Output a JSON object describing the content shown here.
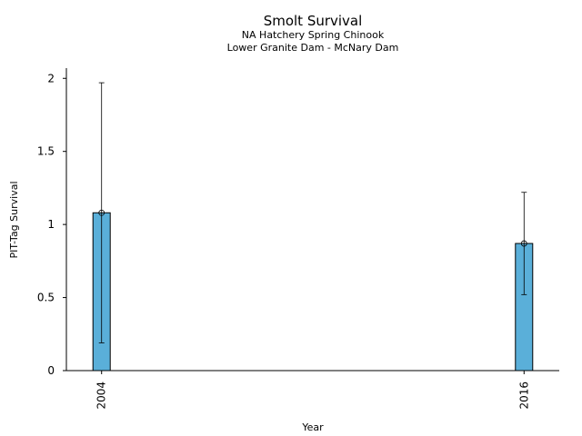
{
  "chart_data": {
    "type": "bar",
    "title": "Smolt Survival",
    "subtitle_lines": [
      "NA Hatchery Spring Chinook",
      "Lower Granite Dam - McNary Dam"
    ],
    "xlabel": "Year",
    "ylabel": "PIT-Tag Survival",
    "categories": [
      "2004",
      "2016"
    ],
    "x": [
      2004,
      2016
    ],
    "values": [
      1.08,
      0.87
    ],
    "error_lower": [
      0.19,
      0.52
    ],
    "error_upper": [
      1.97,
      1.22
    ],
    "ylim": [
      0,
      2.07
    ],
    "xlim": [
      2003.0,
      2017.0
    ],
    "yticks": [
      0,
      0.5,
      1,
      1.5,
      2
    ],
    "ytick_labels": [
      "0",
      "0.5",
      "1",
      "1.5",
      "2"
    ],
    "bar_color": "#5aafd9",
    "grid": false,
    "legend": "none"
  }
}
